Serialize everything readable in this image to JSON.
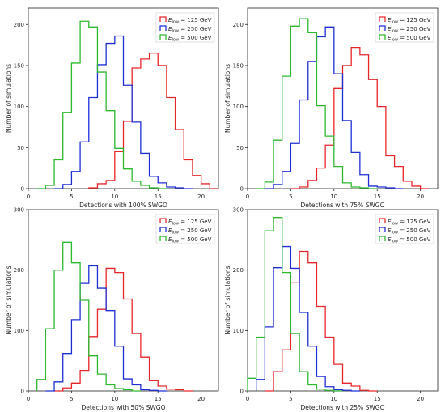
{
  "chart_data": [
    {
      "type": "step-histogram",
      "xlabel": "Detections with 100% SWGO",
      "ylabel": "Number of simulations",
      "xlim": [
        0,
        22
      ],
      "ylim": [
        0,
        220
      ],
      "xticks": [
        0,
        5,
        10,
        15,
        20
      ],
      "yticks": [
        0,
        50,
        100,
        150,
        200
      ],
      "legend_position": "top-right",
      "grid": false,
      "series": [
        {
          "name": "$E_{\\rm low}$ = 125 GeV",
          "label": "= 125 GeV",
          "color": "#e8262a",
          "bins": [
            [
              7,
              1
            ],
            [
              8,
              6
            ],
            [
              9,
              10
            ],
            [
              10,
              45
            ],
            [
              11,
              82
            ],
            [
              12,
              147
            ],
            [
              13,
              158
            ],
            [
              14,
              165
            ],
            [
              15,
              150
            ],
            [
              16,
              111
            ],
            [
              17,
              72
            ],
            [
              18,
              35
            ],
            [
              19,
              16
            ],
            [
              20,
              6
            ],
            [
              21,
              0
            ]
          ]
        },
        {
          "name": "$E_{\\rm low}$ = 250 GeV",
          "label": "= 250 GeV",
          "color": "#1f2fd6",
          "bins": [
            [
              3,
              0
            ],
            [
              4,
              5
            ],
            [
              5,
              21
            ],
            [
              6,
              57
            ],
            [
              7,
              111
            ],
            [
              8,
              151
            ],
            [
              9,
              177
            ],
            [
              10,
              186
            ],
            [
              11,
              126
            ],
            [
              12,
              81
            ],
            [
              13,
              43
            ],
            [
              14,
              15
            ],
            [
              15,
              7
            ],
            [
              16,
              2
            ],
            [
              17,
              1
            ],
            [
              18,
              0
            ]
          ]
        },
        {
          "name": "$E_{\\rm low}$ = 500 GeV",
          "label": "= 500 GeV",
          "color": "#2eb82e",
          "bins": [
            [
              1,
              0
            ],
            [
              2,
              4
            ],
            [
              3,
              35
            ],
            [
              4,
              93
            ],
            [
              5,
              153
            ],
            [
              6,
              204
            ],
            [
              7,
              197
            ],
            [
              8,
              142
            ],
            [
              9,
              95
            ],
            [
              10,
              49
            ],
            [
              11,
              24
            ],
            [
              12,
              9
            ],
            [
              13,
              4
            ],
            [
              14,
              1
            ],
            [
              15,
              0
            ]
          ]
        }
      ]
    },
    {
      "type": "step-histogram",
      "xlabel": "Detections with 75% SWGO",
      "ylabel": "Number of simulations",
      "xlim": [
        0,
        22
      ],
      "ylim": [
        0,
        220
      ],
      "xticks": [
        0,
        5,
        10,
        15,
        20
      ],
      "yticks": [
        0,
        50,
        100,
        150,
        200
      ],
      "legend_position": "top-right",
      "grid": false,
      "series": [
        {
          "name": "$E_{\\rm low}$ = 125 GeV",
          "label": "= 125 GeV",
          "color": "#e8262a",
          "bins": [
            [
              5,
              0
            ],
            [
              6,
              2
            ],
            [
              7,
              10
            ],
            [
              8,
              25
            ],
            [
              9,
              53
            ],
            [
              10,
              122
            ],
            [
              11,
              150
            ],
            [
              12,
              172
            ],
            [
              13,
              163
            ],
            [
              14,
              133
            ],
            [
              15,
              100
            ],
            [
              16,
              40
            ],
            [
              17,
              27
            ],
            [
              18,
              9
            ],
            [
              19,
              3
            ],
            [
              20,
              0
            ]
          ]
        },
        {
          "name": "$E_{\\rm low}$ = 250 GeV",
          "label": "= 250 GeV",
          "color": "#1f2fd6",
          "bins": [
            [
              2,
              0
            ],
            [
              3,
              5
            ],
            [
              4,
              21
            ],
            [
              5,
              55
            ],
            [
              6,
              108
            ],
            [
              7,
              155
            ],
            [
              8,
              185
            ],
            [
              9,
              197
            ],
            [
              10,
              140
            ],
            [
              11,
              83
            ],
            [
              12,
              44
            ],
            [
              13,
              17
            ],
            [
              14,
              3
            ],
            [
              15,
              2
            ],
            [
              16,
              1
            ],
            [
              17,
              0
            ]
          ]
        },
        {
          "name": "$E_{\\rm low}$ = 500 GeV",
          "label": "= 500 GeV",
          "color": "#2eb82e",
          "bins": [
            [
              1,
              0
            ],
            [
              2,
              8
            ],
            [
              3,
              59
            ],
            [
              4,
              137
            ],
            [
              5,
              198
            ],
            [
              6,
              207
            ],
            [
              7,
              190
            ],
            [
              8,
              101
            ],
            [
              9,
              64
            ],
            [
              10,
              27
            ],
            [
              11,
              7
            ],
            [
              12,
              2
            ],
            [
              13,
              1
            ],
            [
              14,
              0
            ]
          ]
        }
      ]
    },
    {
      "type": "step-histogram",
      "xlabel": "Detections with 50% SWGO",
      "ylabel": "Number of simulations",
      "xlim": [
        0,
        22
      ],
      "ylim": [
        0,
        300
      ],
      "xticks": [
        0,
        5,
        10,
        15,
        20
      ],
      "yticks": [
        0,
        100,
        200,
        300
      ],
      "legend_position": "top-right",
      "grid": false,
      "series": [
        {
          "name": "$E_{\\rm low}$ = 125 GeV",
          "label": "= 125 GeV",
          "color": "#e8262a",
          "bins": [
            [
              3,
              0
            ],
            [
              4,
              5
            ],
            [
              5,
              13
            ],
            [
              6,
              34
            ],
            [
              7,
              90
            ],
            [
              8,
              135
            ],
            [
              9,
              203
            ],
            [
              10,
              196
            ],
            [
              11,
              152
            ],
            [
              12,
              95
            ],
            [
              13,
              56
            ],
            [
              14,
              17
            ],
            [
              15,
              8
            ],
            [
              16,
              3
            ],
            [
              17,
              2
            ],
            [
              18,
              0
            ]
          ]
        },
        {
          "name": "$E_{\\rm low}$ = 250 GeV",
          "label": "= 250 GeV",
          "color": "#1f2fd6",
          "bins": [
            [
              2,
              0
            ],
            [
              3,
              15
            ],
            [
              4,
              62
            ],
            [
              5,
              118
            ],
            [
              6,
              178
            ],
            [
              7,
              207
            ],
            [
              8,
              170
            ],
            [
              9,
              133
            ],
            [
              10,
              74
            ],
            [
              11,
              20
            ],
            [
              12,
              10
            ],
            [
              13,
              2
            ],
            [
              14,
              1
            ],
            [
              15,
              0
            ]
          ]
        },
        {
          "name": "$E_{\\rm low}$ = 500 GeV",
          "label": "= 500 GeV",
          "color": "#2eb82e",
          "bins": [
            [
              1,
              19
            ],
            [
              2,
              103
            ],
            [
              3,
              200
            ],
            [
              4,
              246
            ],
            [
              5,
              212
            ],
            [
              6,
              150
            ],
            [
              7,
              58
            ],
            [
              8,
              28
            ],
            [
              9,
              10
            ],
            [
              10,
              4
            ],
            [
              11,
              2
            ],
            [
              12,
              0
            ]
          ]
        }
      ]
    },
    {
      "type": "step-histogram",
      "xlabel": "Detections with 25% SWGO",
      "ylabel": "Number of simulations",
      "xlim": [
        0,
        22
      ],
      "ylim": [
        0,
        300
      ],
      "xticks": [
        0,
        5,
        10,
        15,
        20
      ],
      "yticks": [
        0,
        100,
        200,
        300
      ],
      "legend_position": "top-right",
      "grid": false,
      "series": [
        {
          "name": "$E_{\\rm low}$ = 125 GeV",
          "label": "= 125 GeV",
          "color": "#e8262a",
          "bins": [
            [
              2,
              0
            ],
            [
              3,
              32
            ],
            [
              4,
              68
            ],
            [
              5,
              180
            ],
            [
              6,
              231
            ],
            [
              7,
              212
            ],
            [
              8,
              140
            ],
            [
              9,
              89
            ],
            [
              10,
              44
            ],
            [
              11,
              13
            ],
            [
              12,
              8
            ],
            [
              13,
              1
            ],
            [
              14,
              0
            ]
          ]
        },
        {
          "name": "$E_{\\rm low}$ = 250 GeV",
          "label": "= 250 GeV",
          "color": "#1f2fd6",
          "bins": [
            [
              1,
              19
            ],
            [
              2,
              106
            ],
            [
              3,
              204
            ],
            [
              4,
              239
            ],
            [
              5,
              203
            ],
            [
              6,
              130
            ],
            [
              7,
              74
            ],
            [
              8,
              24
            ],
            [
              9,
              7
            ],
            [
              10,
              2
            ],
            [
              11,
              1
            ],
            [
              12,
              0
            ]
          ]
        },
        {
          "name": "$E_{\\rm low}$ = 500 GeV",
          "label": "= 500 GeV",
          "color": "#2eb82e",
          "bins": [
            [
              0,
              21
            ],
            [
              1,
              89
            ],
            [
              2,
              265
            ],
            [
              3,
              287
            ],
            [
              4,
              196
            ],
            [
              5,
              95
            ],
            [
              6,
              32
            ],
            [
              7,
              10
            ],
            [
              8,
              3
            ],
            [
              9,
              1
            ],
            [
              10,
              0
            ]
          ]
        }
      ]
    }
  ]
}
